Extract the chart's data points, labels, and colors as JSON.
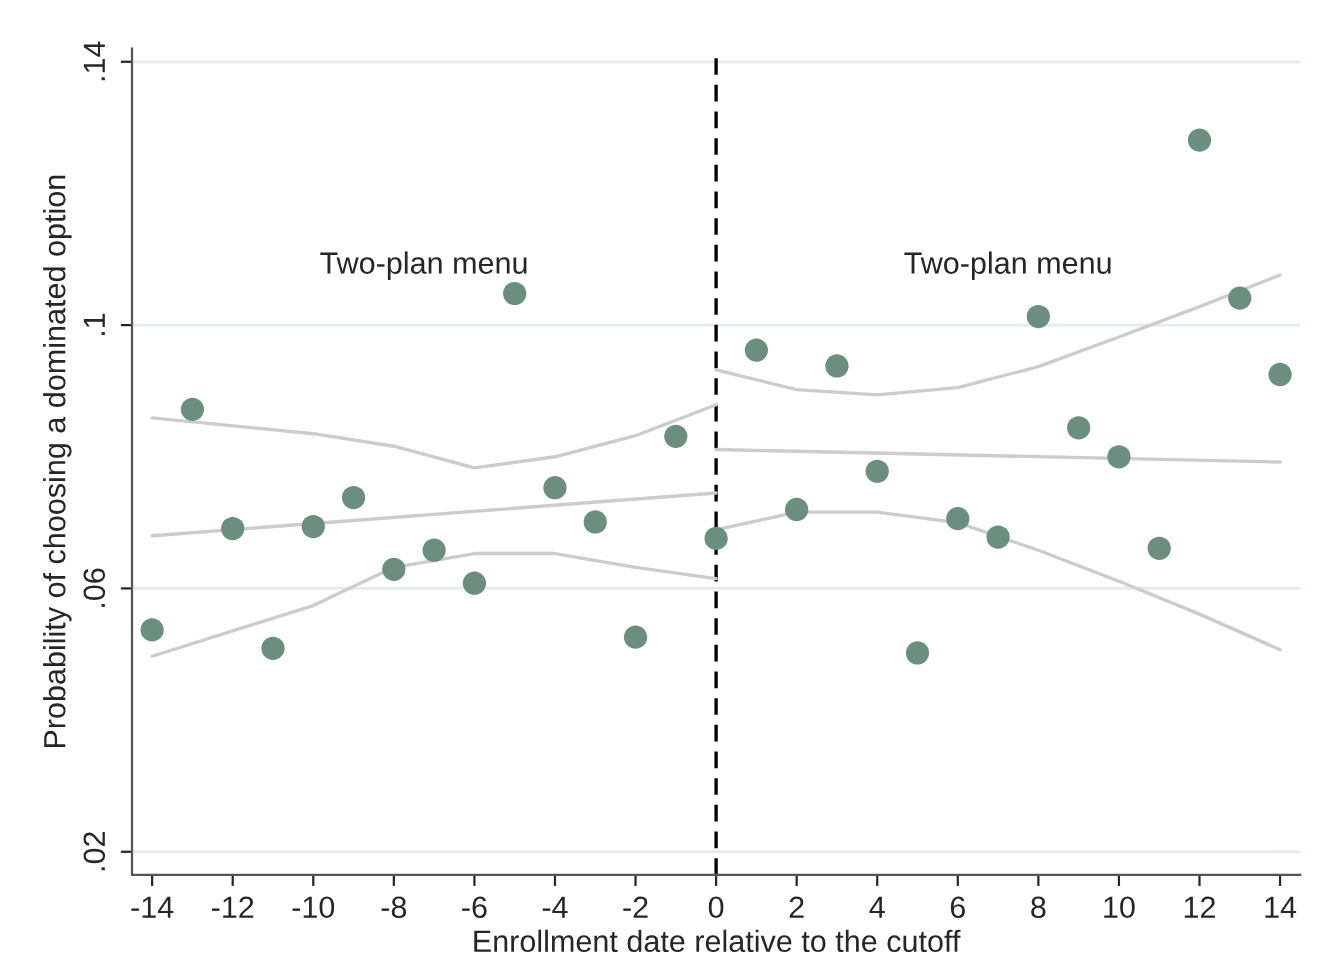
{
  "chart_data": {
    "type": "scatter",
    "xlabel": "Enrollment date relative to the cutoff",
    "ylabel": "Probability of choosing a dominated option",
    "annotations": [
      "Two-plan menu",
      "Two-plan menu"
    ],
    "xlim": [
      -14.5,
      14.5
    ],
    "xticks": [
      -14,
      -12,
      -10,
      -8,
      -6,
      -4,
      -2,
      0,
      2,
      4,
      6,
      8,
      10,
      12,
      14
    ],
    "ylim": [
      0.0165,
      0.142
    ],
    "yticks": [
      {
        "value": 0.02,
        "label": ".02"
      },
      {
        "value": 0.06,
        "label": ".06"
      },
      {
        "value": 0.1,
        "label": ".1"
      },
      {
        "value": 0.14,
        "label": ".14"
      }
    ],
    "grid": "y",
    "legend": false,
    "ref_lines": [
      {
        "axis": "x",
        "value": 0,
        "color": "#000000",
        "line_style": "dashed"
      }
    ],
    "series": [
      {
        "marker": "circle",
        "color": "#6b8e7f",
        "x": [
          -14,
          -13,
          -12,
          -11,
          -10,
          -9,
          -8,
          -7,
          -6,
          -5,
          -4,
          -3,
          -2,
          -1,
          0,
          1,
          2,
          3,
          4,
          5,
          6,
          7,
          8,
          9,
          10,
          11,
          12,
          13,
          14
        ],
        "values": [
          0.0537,
          0.0872,
          0.0691,
          0.0509,
          0.0694,
          0.0738,
          0.0629,
          0.0658,
          0.0608,
          0.1048,
          0.0753,
          0.0701,
          0.0526,
          0.0831,
          0.0676,
          0.0962,
          0.072,
          0.0938,
          0.0778,
          0.0502,
          0.0706,
          0.0678,
          0.1013,
          0.0844,
          0.08,
          0.0661,
          0.1281,
          0.1041,
          0.0925
        ]
      },
      {
        "type": "line",
        "color": "#cccccc",
        "x": [
          -14,
          0
        ],
        "values": [
          0.068,
          0.0745
        ]
      },
      {
        "type": "line",
        "color": "#cccccc",
        "x": [
          -14,
          -10,
          -8,
          -6,
          -4,
          -2,
          0
        ],
        "values": [
          0.0859,
          0.0835,
          0.0816,
          0.0783,
          0.08,
          0.0832,
          0.0879
        ]
      },
      {
        "type": "line",
        "color": "#cccccc",
        "x": [
          -14,
          -10,
          -8,
          -6,
          -4,
          -2,
          0
        ],
        "values": [
          0.0497,
          0.0574,
          0.0632,
          0.0653,
          0.0653,
          0.0632,
          0.0615
        ]
      },
      {
        "type": "line",
        "color": "#cccccc",
        "x": [
          0,
          14
        ],
        "values": [
          0.0811,
          0.0792
        ]
      },
      {
        "type": "line",
        "color": "#cccccc",
        "x": [
          0,
          2,
          4,
          6,
          8,
          10,
          12,
          14
        ],
        "values": [
          0.0932,
          0.0902,
          0.0894,
          0.0905,
          0.0937,
          0.0982,
          0.1028,
          0.1076
        ]
      },
      {
        "type": "line",
        "color": "#cccccc",
        "x": [
          0,
          2,
          4,
          6,
          8,
          10,
          12,
          14
        ],
        "values": [
          0.0689,
          0.0716,
          0.0716,
          0.07,
          0.0658,
          0.0611,
          0.0561,
          0.0507
        ]
      }
    ]
  }
}
